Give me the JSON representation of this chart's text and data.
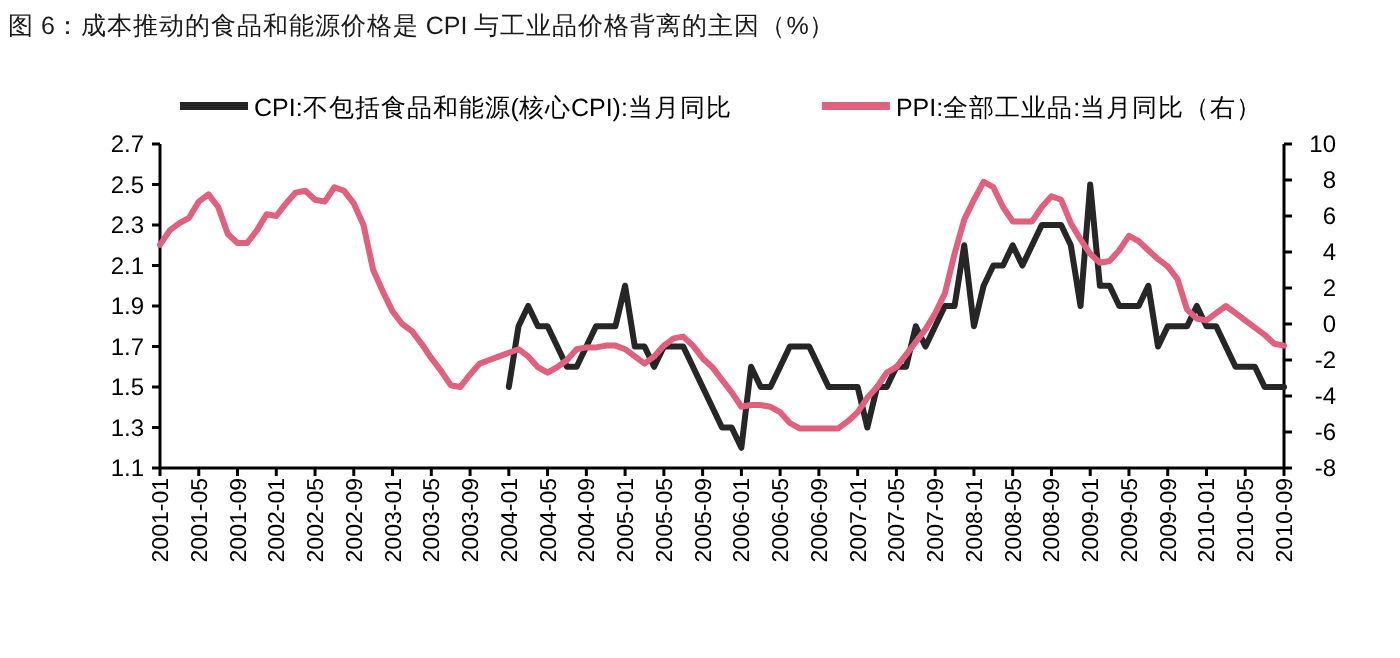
{
  "chart_data": {
    "type": "line",
    "title": "图 6：成本推动的食品和能源价格是 CPI 与工业品价格背离的主因（%）",
    "categories": [
      "2001-01",
      null,
      null,
      null,
      "2001-05",
      null,
      null,
      null,
      "2001-09",
      null,
      null,
      null,
      "2002-01",
      null,
      null,
      null,
      "2002-05",
      null,
      null,
      null,
      "2002-09",
      null,
      null,
      null,
      "2003-01",
      null,
      null,
      null,
      "2003-05",
      null,
      null,
      null,
      "2003-09",
      null,
      null,
      null,
      "2004-01",
      null,
      null,
      null,
      "2004-05",
      null,
      null,
      null,
      "2004-09",
      null,
      null,
      null,
      "2005-01",
      null,
      null,
      null,
      "2005-05",
      null,
      null,
      null,
      "2005-09",
      null,
      null,
      null,
      "2006-01",
      null,
      null,
      null,
      "2006-05",
      null,
      null,
      null,
      "2006-09",
      null,
      null,
      null,
      "2007-01",
      null,
      null,
      null,
      "2007-05",
      null,
      null,
      null,
      "2007-09",
      null,
      null,
      null,
      "2008-01",
      null,
      null,
      null,
      "2008-05",
      null,
      null,
      null,
      "2008-09",
      null,
      null,
      null,
      "2009-01",
      null,
      null,
      null,
      "2009-05",
      null,
      null,
      null,
      "2009-09",
      null,
      null,
      null,
      "2010-01",
      null,
      null,
      null,
      "2010-05",
      null,
      null,
      null,
      "2010-09"
    ],
    "series": [
      {
        "name": "CPI:不包括食品和能源(核心CPI):当月同比",
        "color": "#262626",
        "values": [
          null,
          null,
          null,
          null,
          null,
          null,
          null,
          null,
          null,
          null,
          null,
          null,
          null,
          null,
          null,
          null,
          null,
          null,
          null,
          null,
          null,
          null,
          null,
          null,
          null,
          null,
          null,
          null,
          null,
          null,
          null,
          null,
          null,
          null,
          null,
          null,
          1.5,
          1.8,
          1.9,
          1.8,
          1.8,
          1.7,
          1.6,
          1.6,
          1.7,
          1.8,
          1.8,
          1.8,
          2.0,
          1.7,
          1.7,
          1.6,
          1.7,
          1.7,
          1.7,
          1.6,
          1.5,
          1.4,
          1.3,
          1.3,
          1.2,
          1.6,
          1.5,
          1.5,
          1.6,
          1.7,
          1.7,
          1.7,
          1.6,
          1.5,
          1.5,
          1.5,
          1.5,
          1.3,
          1.5,
          1.5,
          1.6,
          1.6,
          1.8,
          1.7,
          1.8,
          1.9,
          1.9,
          2.2,
          1.8,
          2.0,
          2.1,
          2.1,
          2.2,
          2.1,
          2.2,
          2.3,
          2.3,
          2.3,
          2.2,
          1.9,
          2.5,
          2.0,
          2.0,
          1.9,
          1.9,
          1.9,
          2.0,
          1.7,
          1.8,
          1.8,
          1.8,
          1.9,
          1.8,
          1.8,
          1.7,
          1.6,
          1.6,
          1.6,
          1.5,
          1.5,
          1.5
        ]
      },
      {
        "name": "PPI:全部工业品:当月同比（右）",
        "color": "#e0607e",
        "axis": "y2",
        "values": [
          4.4,
          5.2,
          5.6,
          5.9,
          6.8,
          7.2,
          6.5,
          5.0,
          4.5,
          4.5,
          5.2,
          6.1,
          6.0,
          6.7,
          7.3,
          7.4,
          6.9,
          6.8,
          7.6,
          7.4,
          6.7,
          5.5,
          3.0,
          1.8,
          0.7,
          0.0,
          -0.4,
          -1.1,
          -1.9,
          -2.6,
          -3.4,
          -3.5,
          -2.8,
          -2.2,
          -2.0,
          -1.8,
          -1.6,
          -1.4,
          -1.8,
          -2.4,
          -2.7,
          -2.4,
          -2.0,
          -1.4,
          -1.3,
          -1.3,
          -1.2,
          -1.2,
          -1.4,
          -1.8,
          -2.2,
          -1.8,
          -1.2,
          -0.8,
          -0.7,
          -1.2,
          -1.9,
          -2.4,
          -3.1,
          -3.8,
          -4.6,
          -4.5,
          -4.5,
          -4.6,
          -4.9,
          -5.5,
          -5.8,
          -5.8,
          -5.8,
          -5.8,
          -5.8,
          -5.4,
          -4.9,
          -4.1,
          -3.5,
          -2.7,
          -2.4,
          -1.7,
          -1.0,
          -0.3,
          0.6,
          1.7,
          3.9,
          5.8,
          6.9,
          7.9,
          7.6,
          6.5,
          5.7,
          5.7,
          5.7,
          6.5,
          7.1,
          6.9,
          5.6,
          4.7,
          3.9,
          3.4,
          3.5,
          4.1,
          4.9,
          4.6,
          4.1,
          3.6,
          3.2,
          2.5,
          0.8,
          0.3,
          0.2,
          0.6,
          1.0,
          0.6,
          0.2,
          -0.2,
          -0.6,
          -1.1,
          -1.2
        ]
      }
    ],
    "ylim": [
      1.1,
      2.7
    ],
    "yticks": [
      1.1,
      1.3,
      1.5,
      1.7,
      1.9,
      2.1,
      2.3,
      2.5,
      2.7
    ],
    "y2lim": [
      -8,
      10
    ],
    "y2ticks": [
      -8,
      -6,
      -4,
      -2,
      0,
      2,
      4,
      6,
      8,
      10
    ],
    "legend": "top"
  }
}
